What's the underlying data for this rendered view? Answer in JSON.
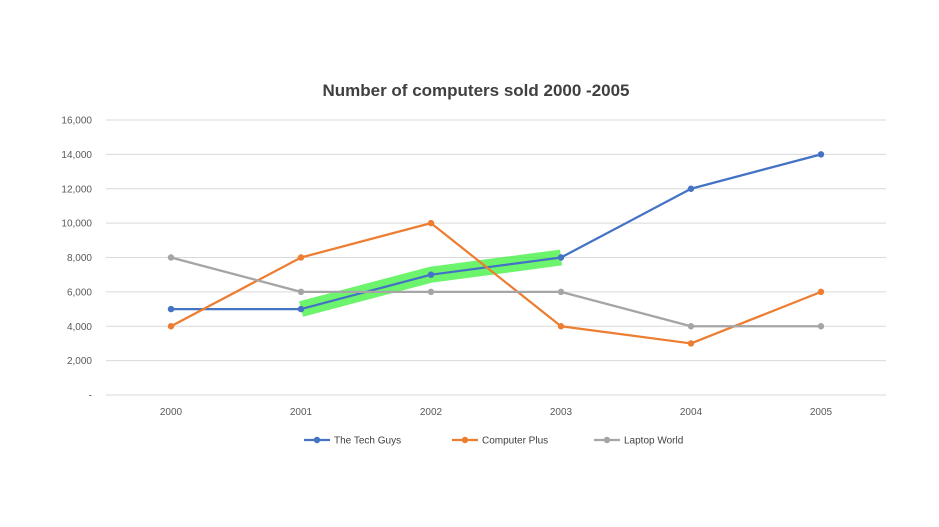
{
  "chart_data": {
    "type": "line",
    "title": "Number of computers sold 2000 -2005",
    "xlabel": "",
    "ylabel": "",
    "categories": [
      "2000",
      "2001",
      "2002",
      "2003",
      "2004",
      "2005"
    ],
    "ylim": [
      0,
      16000
    ],
    "yticks": [
      {
        "value": 0,
        "label": "-"
      },
      {
        "value": 2000,
        "label": "2,000"
      },
      {
        "value": 4000,
        "label": "4,000"
      },
      {
        "value": 6000,
        "label": "6,000"
      },
      {
        "value": 8000,
        "label": "8,000"
      },
      {
        "value": 10000,
        "label": "10,000"
      },
      {
        "value": 12000,
        "label": "12,000"
      },
      {
        "value": 14000,
        "label": "14,000"
      },
      {
        "value": 16000,
        "label": "16,000"
      }
    ],
    "series": [
      {
        "name": "The Tech Guys",
        "color": "#4472c4",
        "values": [
          5000,
          5000,
          7000,
          8000,
          12000,
          14000
        ]
      },
      {
        "name": "Computer Plus",
        "color": "#ed7d31",
        "values": [
          4000,
          8000,
          10000,
          4000,
          3000,
          6000
        ]
      },
      {
        "name": "Laptop World",
        "color": "#a5a5a5",
        "values": [
          8000,
          6000,
          6000,
          6000,
          4000,
          4000
        ]
      }
    ],
    "highlight": {
      "series": "The Tech Guys",
      "from": "2001",
      "to": "2003",
      "color": "#3cf03c"
    },
    "grid": true,
    "legend_position": "bottom"
  }
}
